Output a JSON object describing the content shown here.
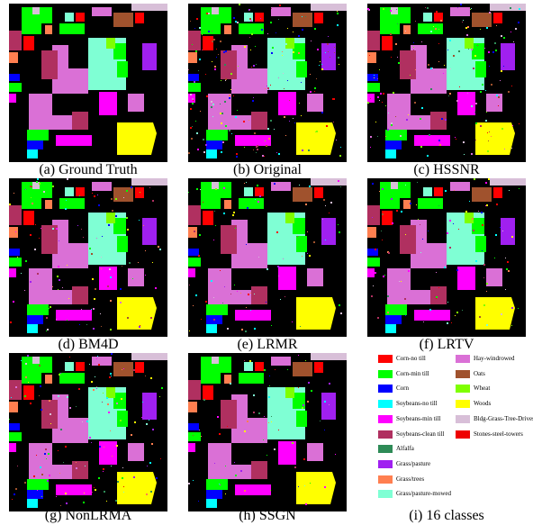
{
  "panels": [
    {
      "id": "a",
      "caption": "(a)  Ground Truth",
      "noise": 0.0
    },
    {
      "id": "b",
      "caption": "(b) Original",
      "noise": 0.14
    },
    {
      "id": "c",
      "caption": "(c)  HSSNR",
      "noise": 0.11
    },
    {
      "id": "d",
      "caption": "(d) BM4D",
      "noise": 0.08
    },
    {
      "id": "e",
      "caption": "(e)  LRMR",
      "noise": 0.06
    },
    {
      "id": "f",
      "caption": "(f)  LRTV",
      "noise": 0.07
    },
    {
      "id": "g",
      "caption": "(g) NonLRMA",
      "noise": 0.09
    },
    {
      "id": "h",
      "caption": "(h)  SSGN",
      "noise": 0.05
    },
    {
      "id": "i",
      "caption": "(i) 16 classes"
    }
  ],
  "legend": {
    "left_column": [
      {
        "label": "Corn-no till",
        "color": "#ff0000"
      },
      {
        "label": "Corn-min till",
        "color": "#00ff00"
      },
      {
        "label": "Corn",
        "color": "#0000ff"
      },
      {
        "label": "Soybeans-no till",
        "color": "#00ffff"
      },
      {
        "label": "Soybeans-min till",
        "color": "#ff00ff"
      },
      {
        "label": "Soybeans-clean till",
        "color": "#b03060"
      },
      {
        "label": "Alfalfa",
        "color": "#2e8b57"
      },
      {
        "label": "Grass/pasture",
        "color": "#a020f0"
      },
      {
        "label": "Grass/trees",
        "color": "#ff7f50"
      },
      {
        "label": "Grass/pasture-mowed",
        "color": "#7fffd4"
      }
    ],
    "right_column": [
      {
        "label": "Hay-windrowed",
        "color": "#da70d6"
      },
      {
        "label": "Oats",
        "color": "#a0522d"
      },
      {
        "label": "Wheat",
        "color": "#7fff00"
      },
      {
        "label": "Woods",
        "color": "#ffff00"
      },
      {
        "label": "Bldg-Grass-Tree-Drives",
        "color": "#d8bfd8"
      },
      {
        "label": "Stones-steel-towers",
        "color": "#ee0000"
      }
    ]
  },
  "map_colors": {
    "hay": "#da70d6",
    "corn_min": "#00ff00",
    "corn_notill": "#ff0000",
    "corn": "#0000ff",
    "soy_notill": "#00ffff",
    "soy_min": "#ff00ff",
    "soy_clean": "#b03060",
    "alfalfa": "#2e8b57",
    "grass_pasture": "#a020f0",
    "grass_trees": "#ff7f50",
    "grass_mowed": "#7fffd4",
    "oats": "#a0522d",
    "wheat": "#7fff00",
    "woods": "#ffff00",
    "bldg": "#d8bfd8",
    "stones": "#ee0000",
    "bg": "#000000"
  }
}
